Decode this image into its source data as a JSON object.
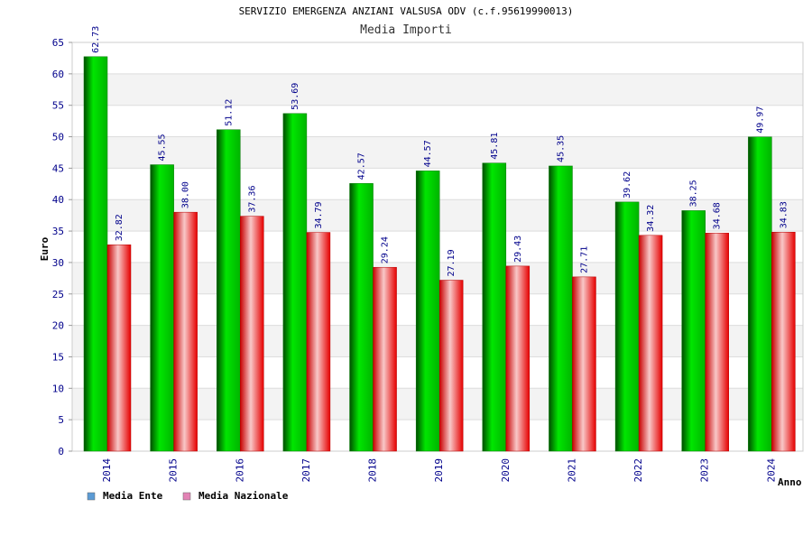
{
  "chart_data": {
    "type": "bar",
    "title": "SERVIZIO EMERGENZA ANZIANI VALSUSA ODV (c.f.95619990013)",
    "subtitle": "Media Importi",
    "xlabel": "Anno",
    "ylabel": "Euro",
    "ylim": [
      0,
      65
    ],
    "yticks": [
      0,
      5,
      10,
      15,
      20,
      25,
      30,
      35,
      40,
      45,
      50,
      55,
      60,
      65
    ],
    "grid": true,
    "legend_position": "bottom-left",
    "categories": [
      "2014",
      "2015",
      "2016",
      "2017",
      "2018",
      "2019",
      "2020",
      "2021",
      "2022",
      "2023",
      "2024"
    ],
    "series": [
      {
        "name": "Media Ente",
        "values": [
          62.73,
          45.55,
          51.12,
          53.69,
          42.57,
          44.57,
          45.81,
          45.35,
          39.62,
          38.25,
          49.97
        ],
        "labels": [
          "62.73",
          "45.55",
          "51.12",
          "53.69",
          "42.57",
          "44.57",
          "45.81",
          "45.35",
          "39.62",
          "38.25",
          "49.97"
        ],
        "color": "#00c800",
        "legend_color": "#5b9bd5"
      },
      {
        "name": "Media Nazionale",
        "values": [
          32.82,
          38.0,
          37.36,
          34.79,
          29.24,
          27.19,
          29.43,
          27.71,
          34.32,
          34.68,
          34.83
        ],
        "labels": [
          "32.82",
          "38.00",
          "37.36",
          "34.79",
          "29.24",
          "27.19",
          "29.43",
          "27.71",
          "34.32",
          "34.68",
          "34.83"
        ],
        "color": "#f00000",
        "legend_color": "#e383b5"
      }
    ]
  }
}
